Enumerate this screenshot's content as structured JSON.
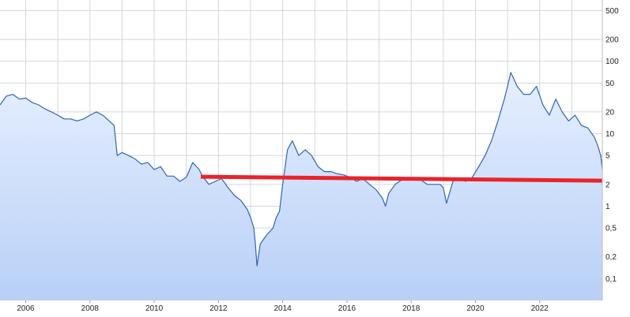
{
  "chart_data": {
    "type": "area",
    "yscale": "log",
    "xlim": [
      2005.2,
      2023.95
    ],
    "ylim": [
      0.05,
      700
    ],
    "grid": true,
    "x_ticks": [
      2006,
      2008,
      2010,
      2012,
      2014,
      2016,
      2018,
      2020,
      2022
    ],
    "y_ticks": [
      {
        "value": 0.1,
        "label": "0,1"
      },
      {
        "value": 0.2,
        "label": "0,2"
      },
      {
        "value": 0.5,
        "label": "0,5"
      },
      {
        "value": 1,
        "label": "1"
      },
      {
        "value": 2,
        "label": "2"
      },
      {
        "value": 5,
        "label": "5"
      },
      {
        "value": 10,
        "label": "10"
      },
      {
        "value": 20,
        "label": "20"
      },
      {
        "value": 50,
        "label": "50"
      },
      {
        "value": 100,
        "label": "100"
      },
      {
        "value": 200,
        "label": "200"
      },
      {
        "value": 500,
        "label": "500"
      }
    ],
    "series": [
      {
        "line_color": "#2f64b4",
        "fill_top_color": "#e6efff",
        "fill_bottom_color": "#b8d0f7",
        "x": [
          2005.2,
          2005.4,
          2005.6,
          2005.8,
          2006.0,
          2006.2,
          2006.4,
          2006.6,
          2006.8,
          2007.0,
          2007.2,
          2007.4,
          2007.6,
          2007.8,
          2008.0,
          2008.2,
          2008.4,
          2008.6,
          2008.75,
          2008.85,
          2009.0,
          2009.2,
          2009.4,
          2009.6,
          2009.8,
          2010.0,
          2010.2,
          2010.4,
          2010.6,
          2010.8,
          2011.0,
          2011.2,
          2011.4,
          2011.5,
          2011.7,
          2011.9,
          2012.1,
          2012.3,
          2012.5,
          2012.7,
          2012.9,
          2013.0,
          2013.1,
          2013.15,
          2013.2,
          2013.3,
          2013.5,
          2013.7,
          2013.8,
          2013.9,
          2014.0,
          2014.15,
          2014.3,
          2014.5,
          2014.7,
          2014.9,
          2015.1,
          2015.3,
          2015.5,
          2015.7,
          2015.9,
          2016.1,
          2016.3,
          2016.5,
          2016.7,
          2016.9,
          2017.1,
          2017.2,
          2017.3,
          2017.5,
          2017.7,
          2017.9,
          2018.1,
          2018.3,
          2018.5,
          2018.7,
          2018.9,
          2019.0,
          2019.1,
          2019.3,
          2019.5,
          2019.7,
          2019.9,
          2020.1,
          2020.3,
          2020.5,
          2020.7,
          2020.9,
          2021.0,
          2021.1,
          2021.3,
          2021.5,
          2021.7,
          2021.9,
          2022.1,
          2022.3,
          2022.5,
          2022.7,
          2022.9,
          2023.1,
          2023.3,
          2023.5,
          2023.7,
          2023.8,
          2023.9,
          2023.95
        ],
        "y": [
          25,
          33,
          35,
          30,
          31,
          27,
          25,
          22,
          20,
          18,
          16,
          16,
          15,
          16,
          18,
          20,
          18,
          15,
          13,
          5,
          5.5,
          5,
          4.5,
          3.8,
          4,
          3.2,
          3.5,
          2.6,
          2.6,
          2.2,
          2.5,
          4,
          3.2,
          2.6,
          2,
          2.2,
          2.4,
          1.8,
          1.4,
          1.2,
          0.9,
          0.7,
          0.5,
          0.3,
          0.15,
          0.3,
          0.4,
          0.5,
          0.7,
          0.85,
          2,
          6,
          8,
          5,
          6,
          5,
          3.5,
          3,
          3,
          2.8,
          2.7,
          2.5,
          2.2,
          2.4,
          2.0,
          1.7,
          1.3,
          1.0,
          1.5,
          2.0,
          2.3,
          2.5,
          2.4,
          2.3,
          2.0,
          2.0,
          2.0,
          1.8,
          1.1,
          2.2,
          2.4,
          2.2,
          2.5,
          3.5,
          5,
          8,
          15,
          30,
          45,
          70,
          45,
          35,
          35,
          45,
          25,
          18,
          30,
          20,
          15,
          18,
          13,
          12,
          9,
          7,
          5,
          3.2
        ]
      }
    ],
    "annotations": [
      {
        "type": "horizontal-line",
        "color": "#e8242a",
        "x_start": 2011.45,
        "x_end": 2023.95,
        "y_start": 2.55,
        "y_end": 2.25
      }
    ]
  }
}
